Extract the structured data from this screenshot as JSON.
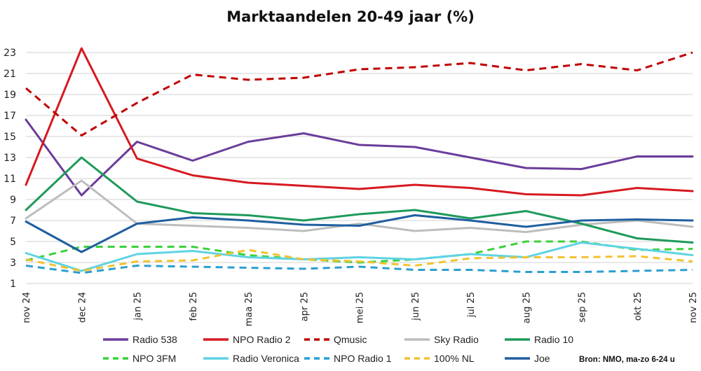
{
  "chart_data": {
    "type": "line",
    "title": "Marktaandelen 20-49 jaar (%)",
    "xlabel": "",
    "ylabel": "",
    "ylim": [
      1,
      23
    ],
    "yticks": [
      1,
      3,
      5,
      7,
      9,
      11,
      13,
      15,
      17,
      19,
      21,
      23
    ],
    "ytick_labels": [
      "1",
      "3",
      "5",
      "7",
      "9",
      "11",
      "13",
      "15",
      "17",
      "19",
      "21",
      "23"
    ],
    "grid": true,
    "legend_position": "bottom",
    "categories": [
      "nov 24",
      "dec 24",
      "jan 25",
      "feb 25",
      "maa 25",
      "apr 25",
      "mei 25",
      "jun 25",
      "jul 25",
      "aug 25",
      "sep 25",
      "okt 25",
      "nov 25"
    ],
    "series": [
      {
        "name": "Radio 538",
        "color": "#6a3d9a",
        "style": "solid",
        "values": [
          16.6,
          9.4,
          14.5,
          12.7,
          14.5,
          15.3,
          14.2,
          14.0,
          13.0,
          12.0,
          11.9,
          13.1,
          13.1
        ]
      },
      {
        "name": "NPO Radio 2",
        "color": "#d71920",
        "style": "solid",
        "values": [
          10.4,
          23.4,
          12.9,
          11.3,
          10.6,
          10.3,
          10.0,
          10.4,
          10.1,
          9.5,
          9.4,
          10.1,
          9.8
        ]
      },
      {
        "name": "Qmusic",
        "color": "#c00000",
        "style": "dashed",
        "values": [
          19.6,
          15.1,
          18.2,
          20.9,
          20.4,
          20.6,
          21.4,
          21.6,
          22.0,
          21.3,
          21.9,
          21.3,
          23.0
        ]
      },
      {
        "name": "Sky Radio",
        "color": "#bdbdbd",
        "style": "solid",
        "values": [
          7.2,
          10.8,
          6.7,
          6.5,
          6.3,
          6.0,
          6.7,
          6.0,
          6.3,
          5.9,
          6.6,
          7.0,
          6.4
        ]
      },
      {
        "name": "Radio 10",
        "color": "#1e9a5a",
        "style": "solid",
        "values": [
          8.0,
          13.0,
          8.8,
          7.7,
          7.5,
          7.0,
          7.6,
          8.0,
          7.2,
          7.9,
          6.7,
          5.3,
          4.9
        ]
      },
      {
        "name": "NPO 3FM",
        "color": "#3ad13a",
        "style": "dashed",
        "values": [
          3.2,
          4.5,
          4.5,
          4.5,
          3.7,
          3.3,
          3.0,
          3.3,
          3.8,
          5.0,
          5.0,
          4.2,
          4.3
        ]
      },
      {
        "name": "Radio Veronica",
        "color": "#5fd3e3",
        "style": "solid",
        "values": [
          3.9,
          2.2,
          3.8,
          4.1,
          3.5,
          3.3,
          3.5,
          3.3,
          3.8,
          3.5,
          4.9,
          4.3,
          3.7
        ]
      },
      {
        "name": "NPO Radio 1",
        "color": "#2a9fd0",
        "style": "dashed",
        "values": [
          2.7,
          2.0,
          2.7,
          2.6,
          2.5,
          2.4,
          2.6,
          2.3,
          2.3,
          2.1,
          2.1,
          2.2,
          2.3
        ]
      },
      {
        "name": "100% NL",
        "color": "#f2c230",
        "style": "dashed",
        "values": [
          3.3,
          2.2,
          3.1,
          3.2,
          4.2,
          3.3,
          3.1,
          2.7,
          3.4,
          3.5,
          3.5,
          3.6,
          3.1
        ]
      },
      {
        "name": "Joe",
        "color": "#1f5fa0",
        "style": "solid",
        "values": [
          6.9,
          4.0,
          6.7,
          7.3,
          7.0,
          6.6,
          6.5,
          7.5,
          7.0,
          6.4,
          7.0,
          7.1,
          7.0
        ]
      }
    ],
    "annotations": [
      "Bron: NMO, ma-zo 6-24 u"
    ]
  },
  "title": "Marktaandelen 20-49 jaar (%)",
  "source": "Bron: NMO, ma-zo 6-24 u",
  "legend": [
    {
      "label": "Radio 538"
    },
    {
      "label": "NPO Radio 2"
    },
    {
      "label": "Qmusic"
    },
    {
      "label": "Sky Radio"
    },
    {
      "label": "Radio 10"
    },
    {
      "label": "NPO 3FM"
    },
    {
      "label": "Radio Veronica"
    },
    {
      "label": "NPO Radio 1"
    },
    {
      "label": "100% NL"
    },
    {
      "label": "Joe"
    }
  ]
}
